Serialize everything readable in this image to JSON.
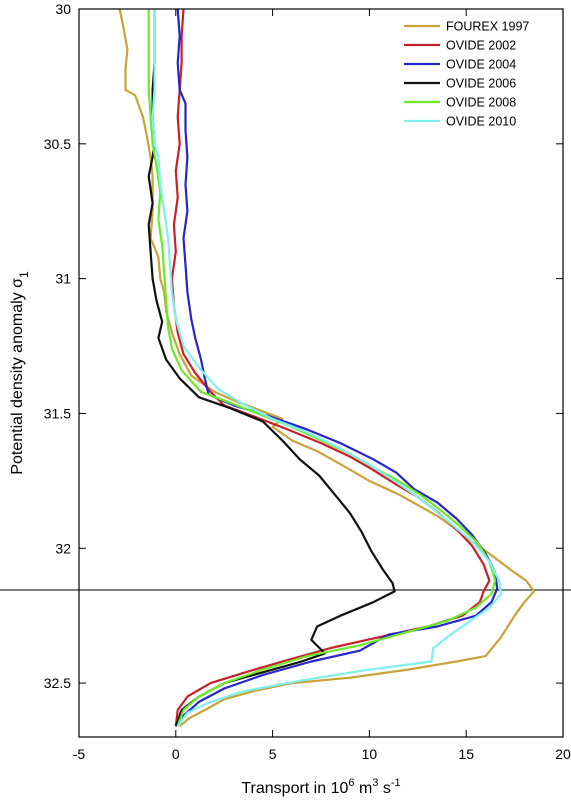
{
  "chart_data": {
    "type": "line",
    "xlabel": "Transport in 10^6 m^3 s^-1",
    "ylabel": "Potential density anomaly σ_1",
    "xlabel_parts": {
      "base": "Transport in 10",
      "exp1": "6",
      "mid": " m",
      "exp2": "3",
      "unit": " s",
      "exp3": "-1"
    },
    "ylabel_parts": {
      "base": "Potential density anomaly σ",
      "sub": "1"
    },
    "xlim": [
      -5,
      20
    ],
    "ylim": [
      30.0,
      32.7
    ],
    "y_inverted": true,
    "x_ticks": [
      -5,
      0,
      5,
      10,
      15,
      20
    ],
    "y_ticks": [
      30,
      30.5,
      31,
      31.5,
      32,
      32.5
    ],
    "x_tick_labels": [
      "-5",
      "0",
      "5",
      "10",
      "15",
      "20"
    ],
    "y_tick_labels": [
      "30",
      "30.5",
      "31",
      "31.5",
      "32",
      "32.5"
    ],
    "reference_line_y": 32.155,
    "legend_position": "top-right",
    "series": [
      {
        "name": "FOUREX 1997",
        "color": "#c9a23a",
        "points": [
          [
            -2.9,
            30.0
          ],
          [
            -2.7,
            30.07
          ],
          [
            -2.5,
            30.15
          ],
          [
            -2.6,
            30.22
          ],
          [
            -2.6,
            30.3
          ],
          [
            -2.1,
            30.32
          ],
          [
            -1.7,
            30.4
          ],
          [
            -1.5,
            30.47
          ],
          [
            -1.3,
            30.55
          ],
          [
            -1.2,
            30.62
          ],
          [
            -1.2,
            30.75
          ],
          [
            -1.3,
            30.85
          ],
          [
            -0.9,
            30.92
          ],
          [
            -0.8,
            31.0
          ],
          [
            -0.6,
            31.05
          ],
          [
            -0.5,
            31.12
          ],
          [
            -0.2,
            31.2
          ],
          [
            0.2,
            31.28
          ],
          [
            0.8,
            31.36
          ],
          [
            2.0,
            31.42
          ],
          [
            3.3,
            31.46
          ],
          [
            5.5,
            31.52
          ],
          [
            5.0,
            31.55
          ],
          [
            6.0,
            31.6
          ],
          [
            7.3,
            31.64
          ],
          [
            8.8,
            31.7
          ],
          [
            10.0,
            31.75
          ],
          [
            11.5,
            31.8
          ],
          [
            12.5,
            31.84
          ],
          [
            13.5,
            31.88
          ],
          [
            14.3,
            31.92
          ],
          [
            15.2,
            31.97
          ],
          [
            16.2,
            32.02
          ],
          [
            17.3,
            32.08
          ],
          [
            18.1,
            32.12
          ],
          [
            18.5,
            32.16
          ],
          [
            18.0,
            32.2
          ],
          [
            17.5,
            32.25
          ],
          [
            16.8,
            32.33
          ],
          [
            16.0,
            32.4
          ],
          [
            14.5,
            32.42
          ],
          [
            12.0,
            32.45
          ],
          [
            9.0,
            32.48
          ],
          [
            6.0,
            32.5
          ],
          [
            4.0,
            32.53
          ],
          [
            2.5,
            32.56
          ],
          [
            1.5,
            32.6
          ],
          [
            0.7,
            32.63
          ],
          [
            0.2,
            32.66
          ]
        ]
      },
      {
        "name": "OVIDE 2002",
        "color": "#c8202a",
        "points": [
          [
            0.4,
            30.0
          ],
          [
            0.3,
            30.1
          ],
          [
            0.3,
            30.2
          ],
          [
            0.2,
            30.3
          ],
          [
            0.1,
            30.4
          ],
          [
            0.2,
            30.5
          ],
          [
            0.0,
            30.6
          ],
          [
            0.1,
            30.7
          ],
          [
            -0.1,
            30.8
          ],
          [
            0.0,
            30.9
          ],
          [
            -0.2,
            31.0
          ],
          [
            -0.1,
            31.1
          ],
          [
            0.1,
            31.2
          ],
          [
            0.4,
            31.28
          ],
          [
            1.0,
            31.35
          ],
          [
            1.8,
            31.42
          ],
          [
            2.5,
            31.47
          ],
          [
            4.0,
            31.51
          ],
          [
            5.8,
            31.56
          ],
          [
            7.5,
            31.61
          ],
          [
            9.0,
            31.66
          ],
          [
            10.2,
            31.71
          ],
          [
            11.3,
            31.76
          ],
          [
            12.5,
            31.81
          ],
          [
            13.6,
            31.87
          ],
          [
            14.5,
            31.93
          ],
          [
            15.3,
            31.99
          ],
          [
            15.9,
            32.06
          ],
          [
            16.2,
            32.12
          ],
          [
            15.9,
            32.16
          ],
          [
            15.7,
            32.2
          ],
          [
            14.8,
            32.25
          ],
          [
            13.0,
            32.29
          ],
          [
            10.5,
            32.33
          ],
          [
            8.0,
            32.37
          ],
          [
            5.5,
            32.42
          ],
          [
            3.6,
            32.46
          ],
          [
            1.8,
            32.5
          ],
          [
            0.6,
            32.55
          ],
          [
            0.1,
            32.6
          ],
          [
            0.0,
            32.66
          ]
        ]
      },
      {
        "name": "OVIDE 2004",
        "color": "#2525cc",
        "points": [
          [
            0.1,
            30.0
          ],
          [
            0.2,
            30.1
          ],
          [
            0.1,
            30.2
          ],
          [
            0.2,
            30.3
          ],
          [
            0.5,
            30.35
          ],
          [
            0.5,
            30.45
          ],
          [
            0.6,
            30.55
          ],
          [
            0.5,
            30.65
          ],
          [
            0.6,
            30.75
          ],
          [
            0.4,
            30.85
          ],
          [
            0.5,
            30.95
          ],
          [
            0.6,
            31.05
          ],
          [
            0.8,
            31.15
          ],
          [
            1.0,
            31.22
          ],
          [
            1.3,
            31.3
          ],
          [
            1.5,
            31.37
          ],
          [
            1.7,
            31.43
          ],
          [
            3.0,
            31.47
          ],
          [
            4.8,
            31.51
          ],
          [
            6.8,
            31.56
          ],
          [
            8.5,
            31.61
          ],
          [
            10.2,
            31.67
          ],
          [
            11.4,
            31.72
          ],
          [
            12.3,
            31.78
          ],
          [
            13.5,
            31.83
          ],
          [
            14.5,
            31.89
          ],
          [
            15.3,
            31.95
          ],
          [
            16.0,
            32.02
          ],
          [
            16.5,
            32.09
          ],
          [
            16.6,
            32.15
          ],
          [
            16.3,
            32.2
          ],
          [
            15.5,
            32.25
          ],
          [
            13.5,
            32.29
          ],
          [
            11.0,
            32.32
          ],
          [
            9.5,
            32.38
          ],
          [
            7.0,
            32.42
          ],
          [
            4.5,
            32.47
          ],
          [
            2.5,
            32.52
          ],
          [
            1.2,
            32.57
          ],
          [
            0.4,
            32.62
          ],
          [
            0.1,
            32.66
          ]
        ]
      },
      {
        "name": "OVIDE 2006",
        "color": "#111111",
        "points": [
          [
            -1.1,
            30.0
          ],
          [
            -1.1,
            30.1
          ],
          [
            -1.1,
            30.2
          ],
          [
            -1.2,
            30.3
          ],
          [
            -1.2,
            30.4
          ],
          [
            -1.1,
            30.5
          ],
          [
            -1.2,
            30.55
          ],
          [
            -1.4,
            30.62
          ],
          [
            -1.2,
            30.72
          ],
          [
            -1.4,
            30.8
          ],
          [
            -1.3,
            30.9
          ],
          [
            -1.2,
            31.0
          ],
          [
            -1.0,
            31.08
          ],
          [
            -0.7,
            31.16
          ],
          [
            -0.9,
            31.22
          ],
          [
            -0.5,
            31.3
          ],
          [
            0.2,
            31.37
          ],
          [
            1.2,
            31.44
          ],
          [
            2.8,
            31.48
          ],
          [
            4.5,
            31.53
          ],
          [
            5.5,
            31.6
          ],
          [
            6.4,
            31.67
          ],
          [
            7.4,
            31.73
          ],
          [
            8.2,
            31.8
          ],
          [
            9.0,
            31.87
          ],
          [
            9.6,
            31.94
          ],
          [
            10.1,
            32.01
          ],
          [
            10.7,
            32.08
          ],
          [
            11.2,
            32.13
          ],
          [
            11.3,
            32.16
          ],
          [
            10.2,
            32.2
          ],
          [
            8.5,
            32.25
          ],
          [
            7.3,
            32.29
          ],
          [
            7.0,
            32.34
          ],
          [
            7.7,
            32.39
          ],
          [
            6.5,
            32.42
          ],
          [
            4.5,
            32.46
          ],
          [
            2.5,
            32.5
          ],
          [
            1.2,
            32.55
          ],
          [
            0.3,
            32.6
          ],
          [
            0.0,
            32.66
          ]
        ]
      },
      {
        "name": "OVIDE 2008",
        "color": "#6ee82a",
        "points": [
          [
            -1.4,
            30.0
          ],
          [
            -1.4,
            30.1
          ],
          [
            -1.4,
            30.2
          ],
          [
            -1.4,
            30.3
          ],
          [
            -1.3,
            30.4
          ],
          [
            -1.2,
            30.5
          ],
          [
            -1.0,
            30.58
          ],
          [
            -0.8,
            30.68
          ],
          [
            -0.9,
            30.78
          ],
          [
            -0.7,
            30.88
          ],
          [
            -0.6,
            30.98
          ],
          [
            -0.5,
            31.08
          ],
          [
            -0.4,
            31.18
          ],
          [
            -0.2,
            31.26
          ],
          [
            0.3,
            31.34
          ],
          [
            1.3,
            31.42
          ],
          [
            2.8,
            31.46
          ],
          [
            4.2,
            31.5
          ],
          [
            6.0,
            31.55
          ],
          [
            7.5,
            31.6
          ],
          [
            9.0,
            31.65
          ],
          [
            10.2,
            31.7
          ],
          [
            11.5,
            31.75
          ],
          [
            12.6,
            31.8
          ],
          [
            13.7,
            31.86
          ],
          [
            14.7,
            31.92
          ],
          [
            15.6,
            31.98
          ],
          [
            16.2,
            32.05
          ],
          [
            16.5,
            32.12
          ],
          [
            16.3,
            32.17
          ],
          [
            15.5,
            32.22
          ],
          [
            14.0,
            32.27
          ],
          [
            12.0,
            32.31
          ],
          [
            9.5,
            32.36
          ],
          [
            6.8,
            32.4
          ],
          [
            4.5,
            32.45
          ],
          [
            2.5,
            32.5
          ],
          [
            1.2,
            32.55
          ],
          [
            0.4,
            32.6
          ],
          [
            0.1,
            32.66
          ]
        ]
      },
      {
        "name": "OVIDE 2010",
        "color": "#7ff0ee",
        "points": [
          [
            -1.1,
            30.0
          ],
          [
            -1.1,
            30.1
          ],
          [
            -1.1,
            30.2
          ],
          [
            -1.1,
            30.3
          ],
          [
            -1.2,
            30.4
          ],
          [
            -1.1,
            30.5
          ],
          [
            -0.9,
            30.55
          ],
          [
            -0.8,
            30.65
          ],
          [
            -0.6,
            30.75
          ],
          [
            -0.4,
            30.85
          ],
          [
            -0.3,
            30.95
          ],
          [
            -0.2,
            31.05
          ],
          [
            0.0,
            31.15
          ],
          [
            0.4,
            31.25
          ],
          [
            1.2,
            31.33
          ],
          [
            2.2,
            31.41
          ],
          [
            3.6,
            31.47
          ],
          [
            5.0,
            31.52
          ],
          [
            6.8,
            31.57
          ],
          [
            8.5,
            31.63
          ],
          [
            10.0,
            31.69
          ],
          [
            11.3,
            31.75
          ],
          [
            12.3,
            31.8
          ],
          [
            13.4,
            31.86
          ],
          [
            14.4,
            31.92
          ],
          [
            15.4,
            31.98
          ],
          [
            16.2,
            32.05
          ],
          [
            16.7,
            32.12
          ],
          [
            16.8,
            32.17
          ],
          [
            16.2,
            32.22
          ],
          [
            15.2,
            32.27
          ],
          [
            14.2,
            32.32
          ],
          [
            13.3,
            32.37
          ],
          [
            13.2,
            32.42
          ],
          [
            10.0,
            32.45
          ],
          [
            6.5,
            32.49
          ],
          [
            3.5,
            32.53
          ],
          [
            1.8,
            32.57
          ],
          [
            0.6,
            32.61
          ],
          [
            0.1,
            32.66
          ]
        ]
      }
    ]
  }
}
